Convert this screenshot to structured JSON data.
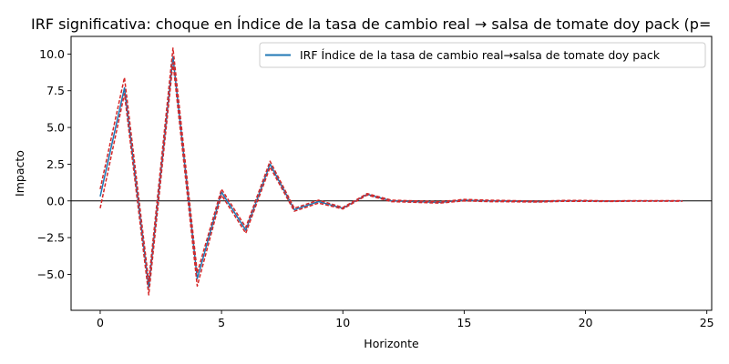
{
  "chart_data": {
    "type": "line",
    "title": "IRF significativa: choque en Índice de la tasa de cambio real → salsa de tomate doy pack (p=",
    "xlabel": "Horizonte",
    "ylabel": "Impacto",
    "xlim": [
      -1.2,
      25.2
    ],
    "ylim": [
      -7.45,
      11.2
    ],
    "xticks": [
      0,
      5,
      10,
      15,
      20,
      25
    ],
    "yticks": [
      -5.0,
      -2.5,
      0.0,
      2.5,
      5.0,
      7.5,
      10.0
    ],
    "xtick_labels": [
      "0",
      "5",
      "10",
      "15",
      "20",
      "25"
    ],
    "ytick_labels": [
      "−5.0",
      "−2.5",
      "0.0",
      "2.5",
      "5.0",
      "7.5",
      "10.0"
    ],
    "grid": false,
    "legend_position": "top-right",
    "zero_line": true,
    "x": [
      0,
      1,
      2,
      3,
      4,
      5,
      6,
      7,
      8,
      9,
      10,
      11,
      12,
      13,
      14,
      15,
      16,
      17,
      18,
      19,
      20,
      21,
      22,
      23,
      24
    ],
    "series": [
      {
        "name": "IRF Índice de la tasa de cambio real→salsa de tomate doy pack",
        "role": "irf",
        "color": "#1f77b4",
        "values": [
          0.3,
          7.7,
          -5.9,
          9.8,
          -5.3,
          0.6,
          -2.0,
          2.5,
          -0.6,
          -0.05,
          -0.5,
          0.45,
          0.0,
          -0.05,
          -0.1,
          0.05,
          0.0,
          -0.02,
          -0.05,
          0.0,
          0.0,
          -0.02,
          0.0,
          0.0,
          0.0
        ]
      },
      {
        "role": "lower-band",
        "color": "#d62728",
        "values": [
          -0.5,
          7.3,
          -6.4,
          9.4,
          -5.8,
          0.4,
          -2.2,
          2.3,
          -0.7,
          -0.15,
          -0.55,
          0.4,
          -0.05,
          -0.1,
          -0.15,
          0.0,
          -0.05,
          -0.06,
          -0.08,
          -0.03,
          -0.03,
          -0.04,
          -0.02,
          -0.02,
          -0.02
        ]
      },
      {
        "role": "upper-band",
        "color": "#d62728",
        "values": [
          0.8,
          8.4,
          -5.5,
          10.4,
          -4.9,
          0.8,
          -1.8,
          2.7,
          -0.5,
          0.05,
          -0.45,
          0.5,
          0.05,
          0.0,
          -0.05,
          0.1,
          0.05,
          0.02,
          -0.02,
          0.03,
          0.03,
          0.0,
          0.02,
          0.02,
          0.02
        ]
      }
    ]
  }
}
